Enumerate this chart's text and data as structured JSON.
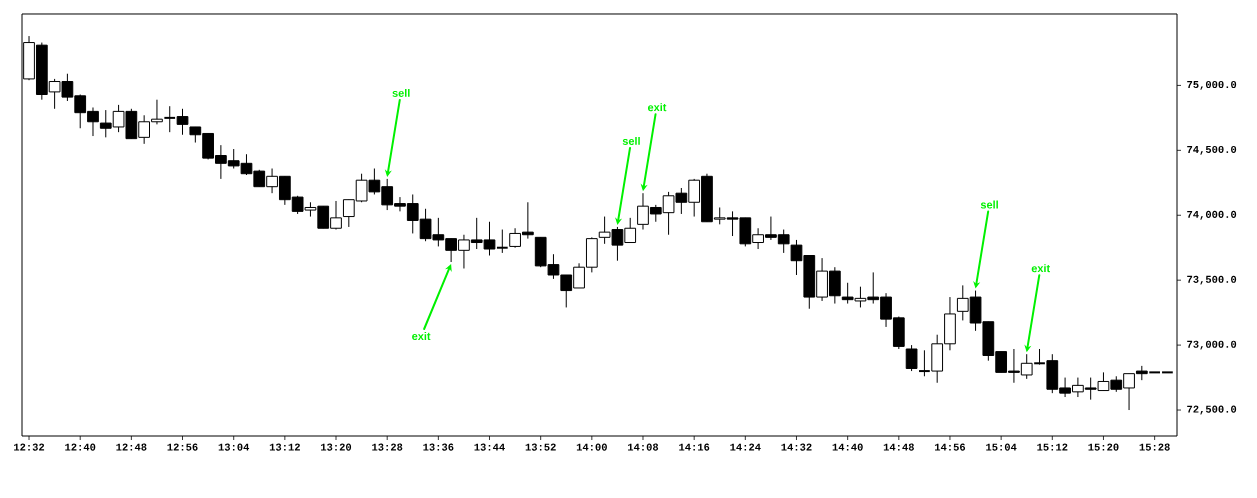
{
  "chart_data": {
    "type": "candlestick",
    "color": "#000000",
    "x": [
      12.5333,
      12.5667,
      12.6,
      12.6333,
      12.6667,
      12.7,
      12.7333,
      12.7667,
      12.8,
      12.8333,
      12.8667,
      12.9,
      12.9333,
      12.9667,
      13.0,
      13.0333,
      13.0667,
      13.1,
      13.1333,
      13.1667,
      13.2,
      13.2333,
      13.2667,
      13.3,
      13.3333,
      13.3667,
      13.4,
      13.4333,
      13.4667,
      13.5,
      13.5333,
      13.5667,
      13.6,
      13.6333,
      13.6667,
      13.7,
      13.7333,
      13.7667,
      13.8,
      13.8333,
      13.8667,
      13.9,
      13.9333,
      13.9667,
      14.0,
      14.0333,
      14.0667,
      14.1,
      14.1333,
      14.1667,
      14.2,
      14.2333,
      14.2667,
      14.3,
      14.3333,
      14.3667,
      14.4,
      14.4333,
      14.4667,
      14.5,
      14.5333,
      14.5667,
      14.6,
      14.6333,
      14.6667,
      14.7,
      14.7333,
      14.7667,
      14.8,
      14.8333,
      14.8667,
      14.9,
      14.9333,
      14.9667,
      15.0,
      15.0333,
      15.0667,
      15.1,
      15.1333,
      15.1667,
      15.2,
      15.2333,
      15.2667,
      15.3,
      15.3333,
      15.3667,
      15.4,
      15.4333,
      15.4667,
      15.5
    ],
    "ohlc": [
      [
        75050,
        75380,
        75040,
        75330
      ],
      [
        75310,
        75330,
        74890,
        74930
      ],
      [
        74950,
        75050,
        74820,
        75030
      ],
      [
        75030,
        75090,
        74880,
        74910
      ],
      [
        74920,
        74930,
        74670,
        74790
      ],
      [
        74800,
        74830,
        74610,
        74720
      ],
      [
        74710,
        74810,
        74600,
        74670
      ],
      [
        74680,
        74850,
        74640,
        74800
      ],
      [
        74800,
        74820,
        74590,
        74590
      ],
      [
        74600,
        74770,
        74550,
        74720
      ],
      [
        74720,
        74890,
        74700,
        74740
      ],
      [
        74750,
        74840,
        74640,
        74750
      ],
      [
        74760,
        74820,
        74620,
        74700
      ],
      [
        74680,
        74680,
        74560,
        74620
      ],
      [
        74630,
        74630,
        74430,
        74440
      ],
      [
        74460,
        74540,
        74280,
        74400
      ],
      [
        74420,
        74510,
        74360,
        74380
      ],
      [
        74400,
        74470,
        74310,
        74320
      ],
      [
        74340,
        74350,
        74220,
        74220
      ],
      [
        74220,
        74360,
        74170,
        74300
      ],
      [
        74300,
        74300,
        74080,
        74120
      ],
      [
        74140,
        74150,
        74010,
        74030
      ],
      [
        74040,
        74100,
        73990,
        74060
      ],
      [
        74070,
        74070,
        73900,
        73900
      ],
      [
        73900,
        74110,
        73890,
        73980
      ],
      [
        73990,
        74120,
        73910,
        74120
      ],
      [
        74110,
        74320,
        74100,
        74270
      ],
      [
        74270,
        74360,
        74160,
        74180
      ],
      [
        74220,
        74280,
        74040,
        74080
      ],
      [
        74090,
        74140,
        74030,
        74070
      ],
      [
        74090,
        74160,
        73860,
        73960
      ],
      [
        73970,
        74050,
        73800,
        73820
      ],
      [
        73850,
        73980,
        73760,
        73810
      ],
      [
        73820,
        73820,
        73640,
        73730
      ],
      [
        73730,
        73850,
        73590,
        73810
      ],
      [
        73810,
        73980,
        73740,
        73790
      ],
      [
        73810,
        73950,
        73690,
        73740
      ],
      [
        73750,
        73890,
        73710,
        73750
      ],
      [
        73760,
        73900,
        73750,
        73860
      ],
      [
        73870,
        74100,
        73820,
        73850
      ],
      [
        73830,
        73830,
        73600,
        73610
      ],
      [
        73620,
        73700,
        73510,
        73540
      ],
      [
        73540,
        73540,
        73290,
        73420
      ],
      [
        73440,
        73630,
        73440,
        73600
      ],
      [
        73600,
        73830,
        73560,
        73820
      ],
      [
        73830,
        73990,
        73780,
        73870
      ],
      [
        73890,
        73910,
        73650,
        73770
      ],
      [
        73790,
        73980,
        73790,
        73900
      ],
      [
        73930,
        74170,
        73890,
        74070
      ],
      [
        74060,
        74080,
        73950,
        74010
      ],
      [
        74020,
        74180,
        73850,
        74150
      ],
      [
        74170,
        74210,
        74010,
        74100
      ],
      [
        74100,
        74280,
        73990,
        74270
      ],
      [
        74300,
        74320,
        73950,
        73950
      ],
      [
        73970,
        74060,
        73930,
        73980
      ],
      [
        73980,
        74030,
        73840,
        73970
      ],
      [
        73980,
        73980,
        73760,
        73780
      ],
      [
        73790,
        73900,
        73740,
        73850
      ],
      [
        73850,
        73990,
        73810,
        73830
      ],
      [
        73850,
        73890,
        73710,
        73780
      ],
      [
        73770,
        73810,
        73540,
        73650
      ],
      [
        73690,
        73690,
        73280,
        73370
      ],
      [
        73370,
        73670,
        73340,
        73570
      ],
      [
        73570,
        73600,
        73320,
        73380
      ],
      [
        73370,
        73480,
        73320,
        73350
      ],
      [
        73340,
        73450,
        73290,
        73360
      ],
      [
        73370,
        73560,
        73320,
        73350
      ],
      [
        73370,
        73400,
        73140,
        73200
      ],
      [
        73210,
        73220,
        72970,
        72990
      ],
      [
        72970,
        73000,
        72800,
        72820
      ],
      [
        72800,
        72960,
        72760,
        72800
      ],
      [
        72800,
        73080,
        72710,
        73010
      ],
      [
        73010,
        73370,
        72960,
        73240
      ],
      [
        73260,
        73460,
        73190,
        73360
      ],
      [
        73370,
        73420,
        73110,
        73170
      ],
      [
        73180,
        73180,
        72880,
        72920
      ],
      [
        72950,
        72950,
        72790,
        72790
      ],
      [
        72800,
        72970,
        72710,
        72790
      ],
      [
        72770,
        72930,
        72740,
        72860
      ],
      [
        72860,
        72970,
        72850,
        72860
      ],
      [
        72880,
        72930,
        72630,
        72660
      ],
      [
        72670,
        72750,
        72600,
        72630
      ],
      [
        72640,
        72750,
        72600,
        72690
      ],
      [
        72670,
        72750,
        72580,
        72660
      ],
      [
        72650,
        72790,
        72650,
        72720
      ],
      [
        72730,
        72760,
        72640,
        72660
      ],
      [
        72670,
        72780,
        72500,
        72780
      ],
      [
        72800,
        72840,
        72730,
        72780
      ],
      [
        72790,
        72790,
        72790,
        72790
      ],
      [
        72790,
        72790,
        72790,
        72790
      ]
    ],
    "xlim": [
      12.515,
      15.525
    ],
    "ylim": [
      72300,
      75550
    ],
    "xticks": [
      {
        "value": 12.5333,
        "label": "12:32"
      },
      {
        "value": 12.6667,
        "label": "12:40"
      },
      {
        "value": 12.8,
        "label": "12:48"
      },
      {
        "value": 12.9333,
        "label": "12:56"
      },
      {
        "value": 13.0667,
        "label": "13:04"
      },
      {
        "value": 13.2,
        "label": "13:12"
      },
      {
        "value": 13.3333,
        "label": "13:20"
      },
      {
        "value": 13.4667,
        "label": "13:28"
      },
      {
        "value": 13.6,
        "label": "13:36"
      },
      {
        "value": 13.7333,
        "label": "13:44"
      },
      {
        "value": 13.8667,
        "label": "13:52"
      },
      {
        "value": 14.0,
        "label": "14:00"
      },
      {
        "value": 14.1333,
        "label": "14:08"
      },
      {
        "value": 14.2667,
        "label": "14:16"
      },
      {
        "value": 14.4,
        "label": "14:24"
      },
      {
        "value": 14.5333,
        "label": "14:32"
      },
      {
        "value": 14.6667,
        "label": "14:40"
      },
      {
        "value": 14.8,
        "label": "14:48"
      },
      {
        "value": 14.9333,
        "label": "14:56"
      },
      {
        "value": 15.0667,
        "label": "15:04"
      },
      {
        "value": 15.2,
        "label": "15:12"
      },
      {
        "value": 15.3333,
        "label": "15:20"
      },
      {
        "value": 15.4667,
        "label": "15:28"
      }
    ],
    "yticks": [
      {
        "value": 72500,
        "label": "72,500.0"
      },
      {
        "value": 73000,
        "label": "73,000.0"
      },
      {
        "value": 73500,
        "label": "73,500.0"
      },
      {
        "value": 74000,
        "label": "74,000.0"
      },
      {
        "value": 74500,
        "label": "74,500.0"
      },
      {
        "value": 75000,
        "label": "75,000.0"
      }
    ],
    "annotations": [
      {
        "text": "sell",
        "x": 13.4667,
        "y": 74280
      },
      {
        "text": "exit",
        "x": 13.6333,
        "y": 73640
      },
      {
        "text": "sell",
        "x": 14.0667,
        "y": 73910
      },
      {
        "text": "exit",
        "x": 14.1333,
        "y": 74170
      },
      {
        "text": "sell",
        "x": 15.0,
        "y": 73420
      },
      {
        "text": "exit",
        "x": 15.1333,
        "y": 72930
      }
    ]
  }
}
